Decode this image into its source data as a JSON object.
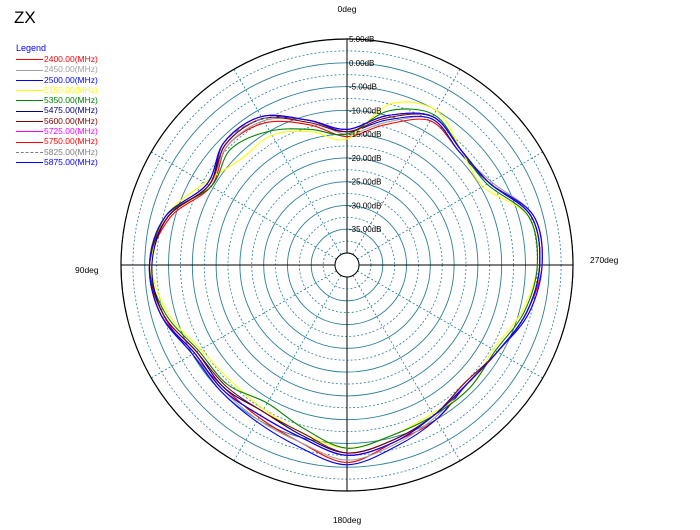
{
  "chart_data": {
    "type": "line",
    "subtype": "polar",
    "title": "ZX",
    "legend": {
      "title": "Legend",
      "placement": "top-left"
    },
    "radial_axis": {
      "unit": "dB",
      "ticks": [
        5,
        0,
        -5,
        -10,
        -15,
        -20,
        -25,
        -30,
        -35
      ],
      "tick_labels": [
        "5.00dB",
        "0.00dB",
        "-5.00dB",
        "-10.00dB",
        "-15.00dB",
        "-20.00dB",
        "-25.00dB",
        "-30.00dB",
        "-35.00dB"
      ],
      "range": [
        -40,
        5
      ]
    },
    "angular_axis": {
      "direction": "counterclockwise",
      "zero": "top",
      "labels": [
        {
          "angle": 0,
          "text": "0deg"
        },
        {
          "angle": 90,
          "text": "90deg"
        },
        {
          "angle": 180,
          "text": "180deg"
        },
        {
          "angle": 270,
          "text": "270deg"
        }
      ]
    },
    "angles": [
      0,
      15,
      30,
      45,
      60,
      75,
      90,
      105,
      120,
      135,
      150,
      165,
      180,
      195,
      210,
      225,
      240,
      255,
      270,
      285,
      300,
      315,
      330,
      345
    ],
    "series": [
      {
        "name": "2400.00(MHz)",
        "color": "#ff0000",
        "gain": [
          -15.5,
          -12,
          -8,
          -7,
          -9.5,
          -4,
          -1,
          -2.5,
          -5,
          -6,
          -5.5,
          -4,
          -1,
          -4,
          -5,
          -7,
          -6,
          -3.5,
          -1.5,
          -2,
          -8,
          -9,
          -7.5,
          -12
        ]
      },
      {
        "name": "2450.00(MHz)",
        "color": "#a0a0a0",
        "gain": [
          -15,
          -11,
          -7.5,
          -7,
          -9,
          -3.5,
          -1,
          -2,
          -5,
          -5.5,
          -5,
          -4,
          -1.5,
          -3.5,
          -5.5,
          -7,
          -6,
          -3,
          -1.5,
          -2,
          -7.5,
          -9,
          -7,
          -11.5
        ]
      },
      {
        "name": "2500.00(MHz)",
        "color": "#0000ff",
        "gain": [
          -14.5,
          -11,
          -7,
          -6.5,
          -9,
          -3.5,
          -1,
          -2,
          -5,
          -5,
          -4.5,
          -3,
          -0.5,
          -3,
          -5,
          -7,
          -6,
          -3,
          -1.5,
          -2,
          -8,
          -9,
          -7,
          -11
        ]
      },
      {
        "name": "5150.00(MHz)",
        "color": "#ffff00",
        "gain": [
          -16,
          -13.5,
          -11,
          -11,
          -8,
          -3,
          -1.5,
          -3.5,
          -7,
          -8,
          -7.5,
          -6,
          -4,
          -5.5,
          -6.5,
          -6,
          -7,
          -4.5,
          -2.5,
          -3,
          -9.5,
          -8.5,
          -5,
          -7.5
        ]
      },
      {
        "name": "5350.00(MHz)",
        "color": "#008000",
        "gain": [
          -15,
          -13,
          -10,
          -8,
          -9.5,
          -3,
          -1,
          -3,
          -6.5,
          -7,
          -9,
          -7,
          -4,
          -5.5,
          -6,
          -6,
          -6.5,
          -4,
          -2.5,
          -3,
          -8.5,
          -8.5,
          -6,
          -9
        ]
      },
      {
        "name": "5475.00(MHz)",
        "color": "#000080",
        "gain": [
          -14,
          -11,
          -6.5,
          -6,
          -9,
          -3.5,
          -1.5,
          -2.5,
          -6,
          -6,
          -7,
          -5.5,
          -3,
          -4.5,
          -6,
          -7,
          -6,
          -3.5,
          -2,
          -2.5,
          -8,
          -8.5,
          -6.5,
          -10
        ]
      },
      {
        "name": "5600.00(MHz)",
        "color": "#800000",
        "gain": [
          -14.5,
          -11.5,
          -7,
          -6.5,
          -9,
          -3.5,
          -1,
          -2.5,
          -6,
          -6.5,
          -7,
          -6,
          -3,
          -4.5,
          -6,
          -7.5,
          -6,
          -3.5,
          -2,
          -2.5,
          -8,
          -8.5,
          -6.5,
          -10.5
        ]
      },
      {
        "name": "5725.00(MHz)",
        "color": "#ff00ff",
        "gain": [
          -14,
          -11,
          -6.5,
          -6,
          -8.5,
          -3,
          -1,
          -2,
          -5.5,
          -5.5,
          -6,
          -5,
          -2.5,
          -4,
          -6,
          -7,
          -6,
          -3.5,
          -2,
          -2.5,
          -8,
          -8.5,
          -6.5,
          -10
        ]
      },
      {
        "name": "5750.00(MHz)",
        "color": "#ff0000",
        "gain": [
          -14,
          -11,
          -6.5,
          -6,
          -8.5,
          -3,
          -1,
          -2,
          -5.5,
          -5.5,
          -6,
          -5,
          -2.5,
          -4,
          -6,
          -7,
          -6,
          -3.5,
          -2,
          -2.5,
          -8,
          -8.5,
          -6.5,
          -10
        ]
      },
      {
        "name": "5825.00(MHz)",
        "color": "#808080",
        "dashed": true,
        "gain": [
          -14,
          -11,
          -7,
          -6,
          -8.5,
          -3,
          -1,
          -2,
          -5.5,
          -5.5,
          -6,
          -5,
          -2.5,
          -4,
          -6,
          -7,
          -6,
          -3.5,
          -2,
          -2.5,
          -8,
          -8.5,
          -6.5,
          -10
        ]
      },
      {
        "name": "5875.00(MHz)",
        "color": "#0000ff",
        "gain": [
          -14,
          -11,
          -6.5,
          -6,
          -8.5,
          -3,
          -1,
          -2,
          -5.5,
          -5.5,
          -6,
          -5,
          -2.5,
          -4,
          -6,
          -7,
          -6,
          -3.5,
          -2,
          -2.5,
          -8,
          -8.5,
          -6.5,
          -10
        ]
      }
    ]
  }
}
